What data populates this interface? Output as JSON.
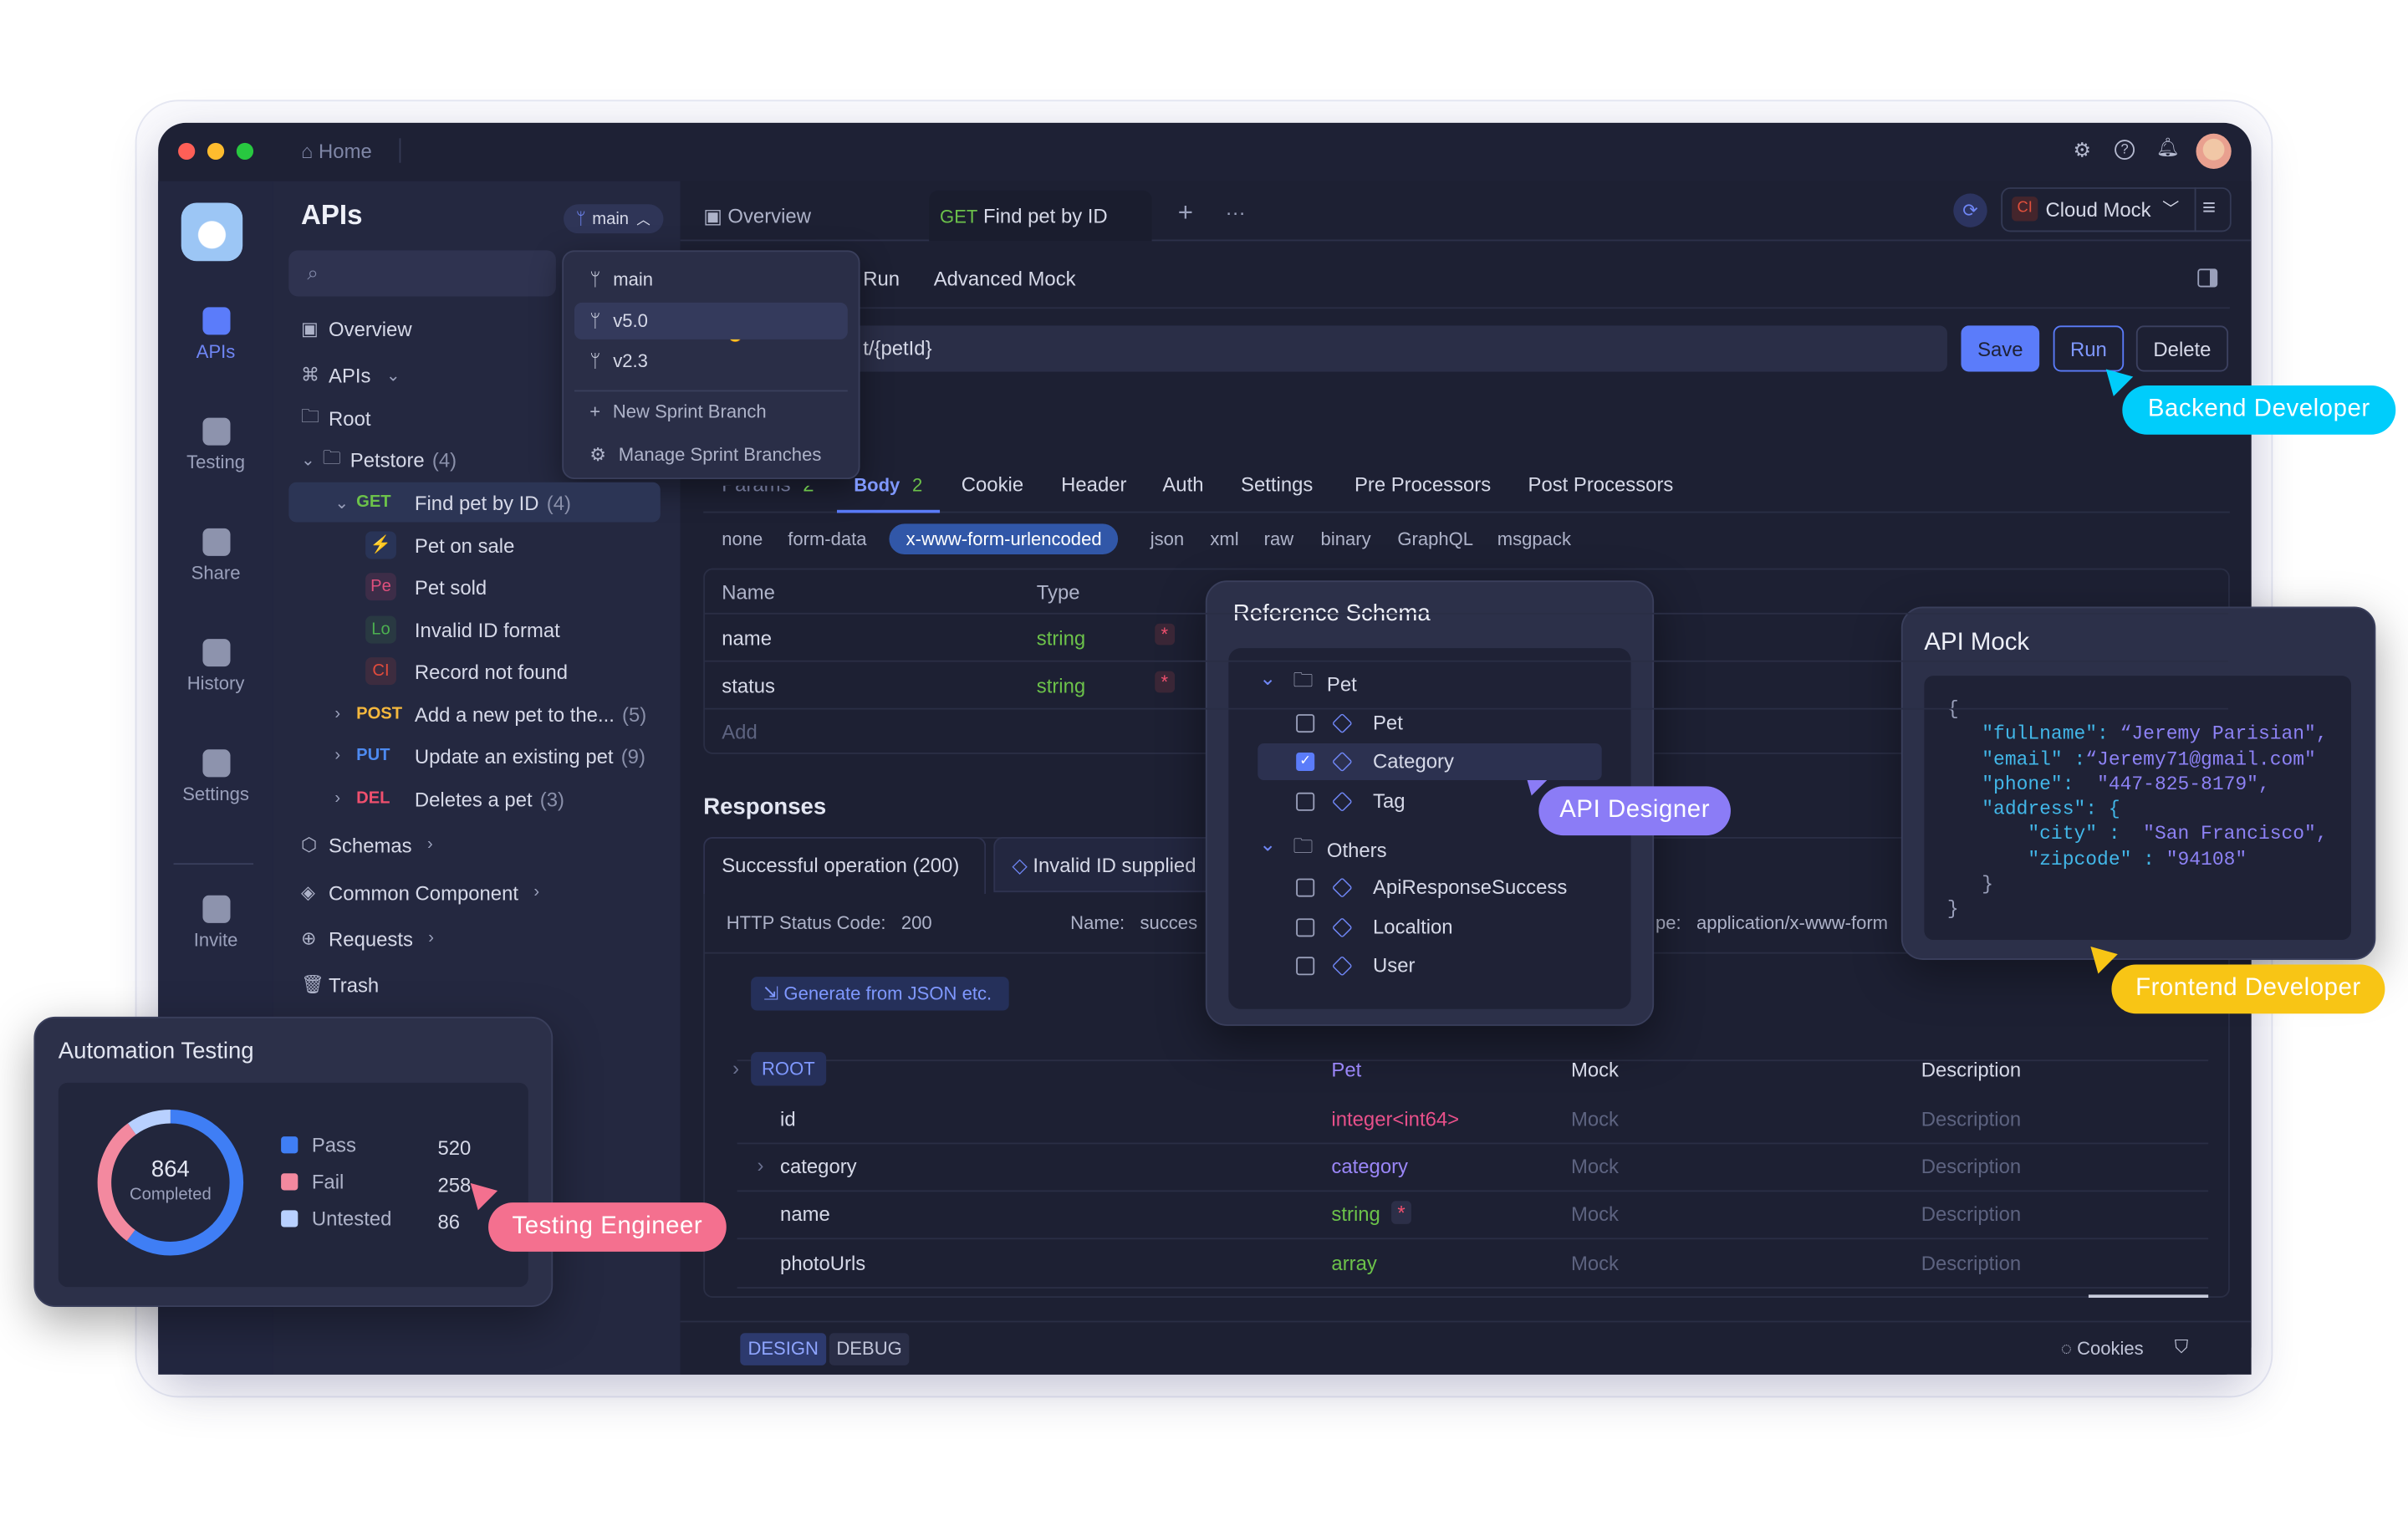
{
  "titlebar": {
    "home": "Home",
    "avatar": "user-avatar"
  },
  "rail": {
    "items": [
      {
        "label": "APIs",
        "active": true
      },
      {
        "label": "Testing"
      },
      {
        "label": "Share"
      },
      {
        "label": "History"
      },
      {
        "label": "Settings"
      },
      {
        "label": "Invite"
      }
    ]
  },
  "sidebar": {
    "title": "APIs",
    "branch": "main",
    "search_placeholder": "",
    "tree": [
      {
        "label": "Overview",
        "icon": "layout"
      },
      {
        "label": "APIs",
        "icon": "api",
        "chev": "⌄"
      },
      {
        "label": "Root",
        "icon": "folder",
        "indent": 1
      },
      {
        "label": "Petstore",
        "count": "(4)",
        "icon": "folder",
        "indent": 1,
        "expand": "⌄"
      },
      {
        "method": "GET",
        "label": "Find pet by ID",
        "count": "(4)",
        "indent": 2,
        "expand": "⌄",
        "selected": true
      },
      {
        "badge": "⚡",
        "badgeColor": "#4d8af0",
        "label": "Pet on sale",
        "indent": 3
      },
      {
        "badge": "Pe",
        "badgeColor": "#e0507d",
        "label": "Pet sold",
        "indent": 3
      },
      {
        "badge": "Lo",
        "badgeColor": "#4caf50",
        "label": "Invalid ID format",
        "indent": 3
      },
      {
        "badge": "CI",
        "badgeColor": "#e04b3c",
        "label": "Record not found",
        "indent": 3
      },
      {
        "method": "POST",
        "label": "Add a new pet to the...",
        "count": "(5)",
        "indent": 2,
        "expand": "›"
      },
      {
        "method": "PUT",
        "label": "Update an existing pet",
        "count": "(9)",
        "indent": 2,
        "expand": "›"
      },
      {
        "method": "DEL",
        "label": "Deletes a pet",
        "count": "(3)",
        "indent": 2,
        "expand": "›"
      },
      {
        "label": "Schemas",
        "icon": "cube",
        "chev": "›"
      },
      {
        "label": "Common Component",
        "icon": "layers",
        "chev": "›"
      },
      {
        "label": "Requests",
        "icon": "request",
        "chev": "›"
      },
      {
        "label": "Trash",
        "icon": "trash"
      }
    ],
    "method_colors": {
      "GET": "#6cc24a",
      "POST": "#f5b83d",
      "PUT": "#4d8af0",
      "DEL": "#f0506e"
    }
  },
  "branch_menu": {
    "items": [
      "main",
      "v5.0",
      "v2.3"
    ],
    "selected": "v5.0",
    "new": "New Sprint Branch",
    "manage": "Manage Sprint Branches"
  },
  "tabs": {
    "overview": "Overview",
    "active_method": "GET",
    "active": "Find pet by ID",
    "env": "Cloud Mock",
    "env_badge": "CI"
  },
  "subtabs": [
    "Run",
    "Advanced Mock"
  ],
  "url": "t/{petId}",
  "actions": {
    "save": "Save",
    "run": "Run",
    "delete": "Delete"
  },
  "req_tabs": [
    {
      "label": "Params",
      "count": "2"
    },
    {
      "label": "Body",
      "count": "2",
      "active": true
    },
    {
      "label": "Cookie"
    },
    {
      "label": "Header"
    },
    {
      "label": "Auth"
    },
    {
      "label": "Settings"
    },
    {
      "label": "Pre Processors"
    },
    {
      "label": "Post Processors"
    }
  ],
  "body_types": [
    "none",
    "form-data",
    "x-www-form-urlencoded",
    "json",
    "xml",
    "raw",
    "binary",
    "GraphQL",
    "msgpack"
  ],
  "body_type_selected": "x-www-form-urlencoded",
  "params": {
    "headers": [
      "Name",
      "Type"
    ],
    "rows": [
      {
        "name": "name",
        "type": "string"
      },
      {
        "name": "status",
        "type": "string"
      }
    ],
    "add": "Add"
  },
  "responses": {
    "title": "Responses",
    "tabs": [
      "Successful operation (200)",
      "Invalid ID supplied"
    ],
    "status_label": "HTTP Status Code:",
    "status": "200",
    "name_label": "Name:",
    "name": "succes",
    "ctype_label": "pe:",
    "ctype": "application/x-www-form",
    "generate": "Generate from JSON etc.",
    "schema": [
      {
        "name": "ROOT",
        "type": "Pet",
        "mock": "Mock",
        "desc": "Description",
        "root": true
      },
      {
        "name": "id",
        "type": "integer<int64>",
        "mock": "Mock",
        "desc": "Description",
        "tcolor": "#e8508a"
      },
      {
        "name": "category",
        "type": "category",
        "mock": "Mock",
        "desc": "Description",
        "tcolor": "#9a86f7",
        "expand": true
      },
      {
        "name": "name",
        "type": "string",
        "mock": "Mock",
        "desc": "Description",
        "tcolor": "#6cc24a",
        "required": true
      },
      {
        "name": "photoUrls",
        "type": "array",
        "mock": "Mock",
        "desc": "Description",
        "tcolor": "#6cc24a"
      }
    ]
  },
  "bottom": {
    "design": "DESIGN",
    "debug": "DEBUG",
    "cookies": "Cookies"
  },
  "ref_schema": {
    "title": "Reference Schema",
    "groups": [
      {
        "name": "Pet",
        "items": [
          {
            "label": "Pet"
          },
          {
            "label": "Category",
            "checked": true
          },
          {
            "label": "Tag"
          }
        ]
      },
      {
        "name": "Others",
        "items": [
          {
            "label": "ApiResponseSuccess"
          },
          {
            "label": "Localtion"
          },
          {
            "label": "User"
          }
        ]
      }
    ]
  },
  "api_mock": {
    "title": "API Mock",
    "lines": [
      [
        "{"
      ],
      [
        "   \"fulLname\": ",
        "“Jeremy Parisian\","
      ],
      [
        "   \"email\" :",
        "“Jeremy71@gmail.com\""
      ],
      [
        "   \"phone\":  ",
        "\"447-825-8179\","
      ],
      [
        "   \"address\": {"
      ],
      [
        "       \"city\" :  ",
        "\"San Francisco\","
      ],
      [
        "       \"zipcode\" : ",
        "\"94108\""
      ],
      [
        "   }"
      ],
      [
        "}"
      ]
    ]
  },
  "automation": {
    "title": "Automation Testing",
    "total": "864",
    "total_label": "Completed",
    "legend": [
      {
        "label": "Pass",
        "value": 520,
        "color": "#3f7ef5"
      },
      {
        "label": "Fail",
        "value": 258,
        "color": "#f3899f"
      },
      {
        "label": "Untested",
        "value": 86,
        "color": "#b8d0ff"
      }
    ]
  },
  "roles": {
    "backend": "Backend Developer",
    "designer": "API Designer",
    "frontend": "Frontend Developer",
    "tester": "Testing Engineer"
  },
  "colors": {
    "accent": "#5b7cfa",
    "backend": "#00cdfb",
    "designer": "#8b7cf6",
    "frontend": "#f8c515",
    "tester": "#f4708f"
  }
}
